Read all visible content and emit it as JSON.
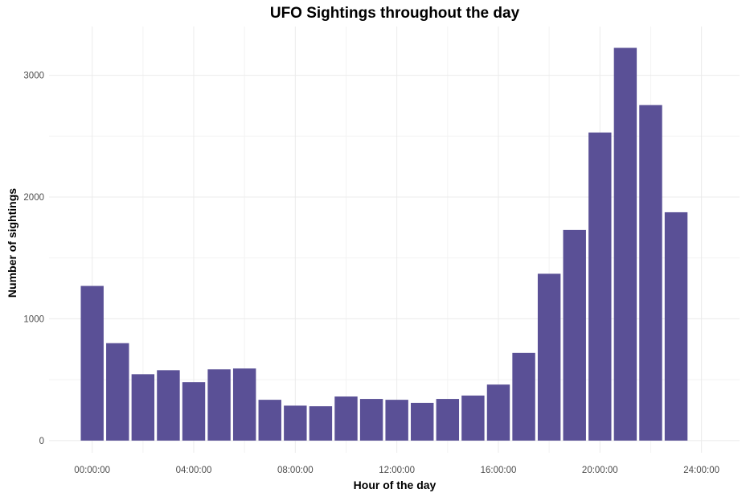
{
  "chart_data": {
    "type": "bar",
    "title": "UFO Sightings throughout the day",
    "xlabel": "Hour of the day",
    "ylabel": "Number of sightings",
    "x_unit": "hours",
    "x_range_hours": [
      -1.7,
      25.5
    ],
    "ylim": [
      -100,
      3400
    ],
    "y_ticks": [
      0,
      1000,
      2000,
      3000
    ],
    "x_ticks": [
      {
        "hour": 0,
        "label": "00:00:00"
      },
      {
        "hour": 4,
        "label": "04:00:00"
      },
      {
        "hour": 8,
        "label": "08:00:00"
      },
      {
        "hour": 12,
        "label": "12:00:00"
      },
      {
        "hour": 16,
        "label": "16:00:00"
      },
      {
        "hour": 20,
        "label": "20:00:00"
      },
      {
        "hour": 24,
        "label": "24:00:00"
      }
    ],
    "grid": true,
    "bar_color": "#5a5096",
    "hours": [
      0,
      1,
      2,
      3,
      4,
      5,
      6,
      7,
      8,
      9,
      10,
      11,
      12,
      13,
      14,
      15,
      16,
      17,
      18,
      19,
      20,
      21,
      22,
      23
    ],
    "values": [
      1270,
      800,
      545,
      578,
      480,
      585,
      592,
      335,
      287,
      282,
      362,
      342,
      335,
      310,
      342,
      370,
      460,
      720,
      1370,
      1730,
      2530,
      3225,
      2755,
      1875
    ]
  }
}
